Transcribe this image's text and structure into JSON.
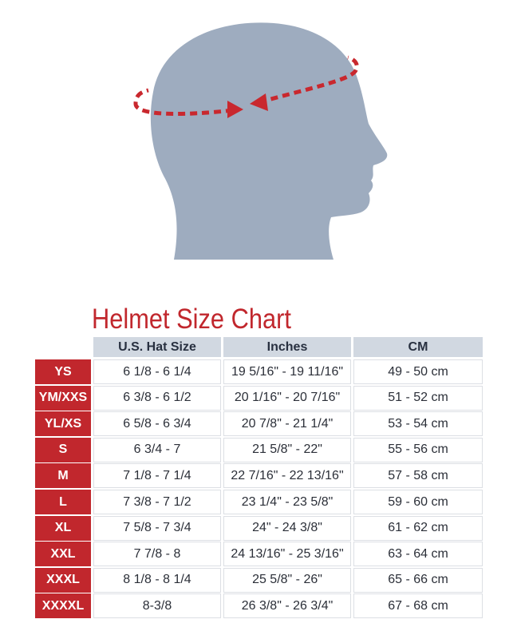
{
  "title": "Helmet Size Chart",
  "colors": {
    "accent": "#c1272d",
    "header_bg": "#d1d8e1",
    "head_silhouette": "#9eacbf"
  },
  "illustration": {
    "icon": "head-circumference-measurement-icon"
  },
  "table": {
    "headers": [
      "U.S. Hat Size",
      "Inches",
      "CM"
    ],
    "rows": [
      {
        "size": "YS",
        "hat": "6 1/8 - 6 1/4",
        "inches": "19 5/16\" - 19 11/16\"",
        "cm": "49 - 50 cm"
      },
      {
        "size": "YM/XXS",
        "hat": "6 3/8 - 6 1/2",
        "inches": "20 1/16\" - 20 7/16\"",
        "cm": "51 - 52 cm"
      },
      {
        "size": "YL/XS",
        "hat": "6 5/8 - 6 3/4",
        "inches": "20 7/8\" - 21 1/4\"",
        "cm": "53 - 54 cm"
      },
      {
        "size": "S",
        "hat": "6 3/4 - 7",
        "inches": "21 5/8\" - 22\"",
        "cm": "55 - 56 cm"
      },
      {
        "size": "M",
        "hat": "7 1/8 - 7 1/4",
        "inches": "22 7/16\" - 22 13/16\"",
        "cm": "57 - 58 cm"
      },
      {
        "size": "L",
        "hat": "7 3/8 - 7 1/2",
        "inches": "23 1/4\" - 23 5/8\"",
        "cm": "59 - 60 cm"
      },
      {
        "size": "XL",
        "hat": "7 5/8 - 7 3/4",
        "inches": "24\" - 24 3/8\"",
        "cm": "61 - 62 cm"
      },
      {
        "size": "XXL",
        "hat": "7 7/8 - 8",
        "inches": "24 13/16\" - 25 3/16\"",
        "cm": "63 - 64 cm"
      },
      {
        "size": "XXXL",
        "hat": "8 1/8 - 8 1/4",
        "inches": "25 5/8\" - 26\"",
        "cm": "65 - 66 cm"
      },
      {
        "size": "XXXXL",
        "hat": "8-3/8",
        "inches": "26 3/8\" - 26 3/4\"",
        "cm": "67 - 68 cm"
      }
    ]
  }
}
